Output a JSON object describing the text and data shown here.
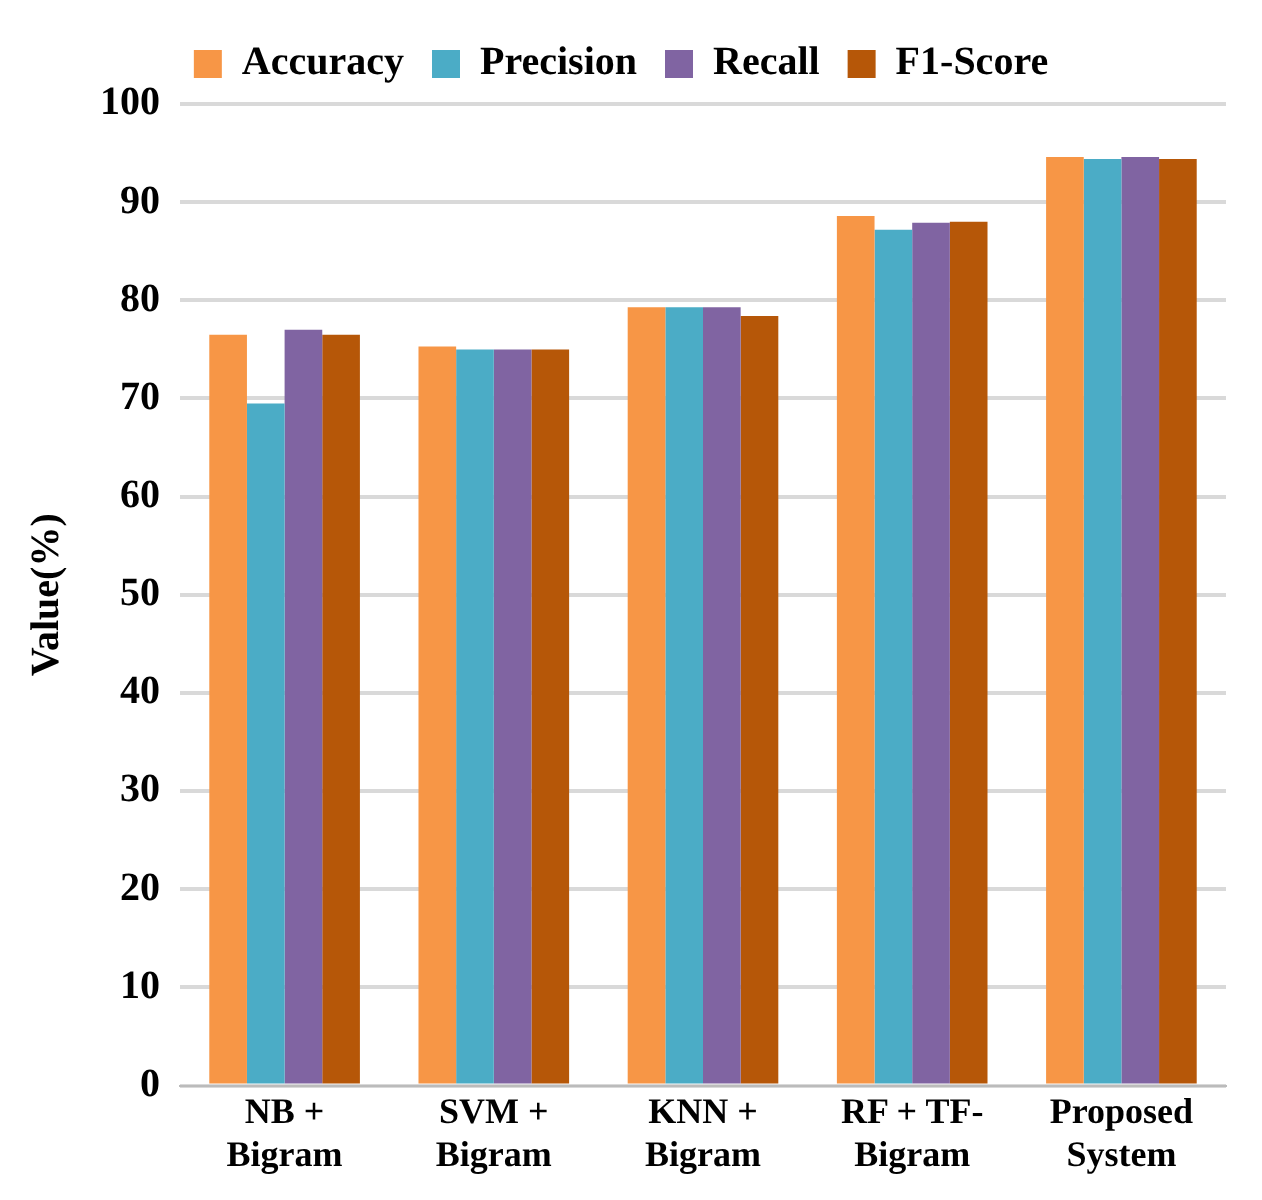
{
  "chart_data": {
    "type": "bar",
    "ylabel": "Value(%)",
    "categories": [
      "NB + Bigram",
      "SVM + Bigram",
      "KNN + Bigram",
      "RF + TF-Bigram",
      "Proposed System"
    ],
    "series": [
      {
        "name": "Accuracy",
        "color": "#f79646",
        "values": [
          76.5,
          75.3,
          79.3,
          88.6,
          94.6
        ]
      },
      {
        "name": "Precision",
        "color": "#4bacc6",
        "values": [
          69.5,
          75,
          79.3,
          87.2,
          94.4
        ]
      },
      {
        "name": "Recall",
        "color": "#8064a2",
        "values": [
          77,
          75,
          79.3,
          87.9,
          94.6
        ]
      },
      {
        "name": "F1-Score",
        "color": "#b65708",
        "values": [
          76.5,
          75,
          78.4,
          88,
          94.4
        ]
      }
    ],
    "ylim": [
      0,
      100
    ],
    "yticks": [
      0,
      10,
      20,
      30,
      40,
      50,
      60,
      70,
      80,
      90,
      100
    ],
    "grid": "y",
    "legend": "top"
  }
}
